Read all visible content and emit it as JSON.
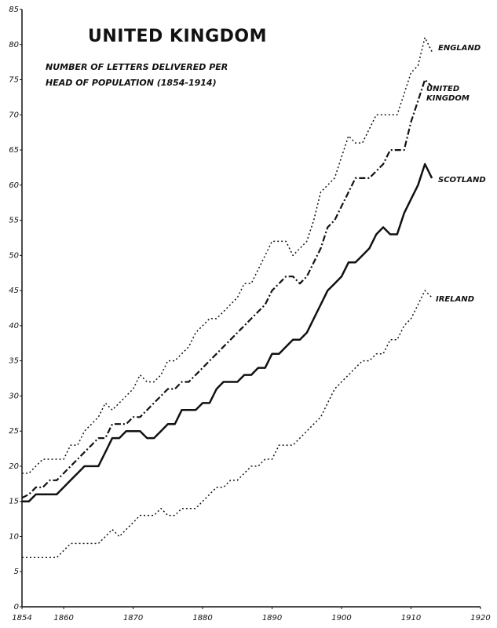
{
  "chart_data": {
    "type": "line",
    "title": "UNITED KINGDOM",
    "subtitle": "NUMBER OF LETTERS DELIVERED PER HEAD OF POPULATION (1854-1914)",
    "x": [
      1854,
      1855,
      1856,
      1857,
      1858,
      1859,
      1860,
      1861,
      1862,
      1863,
      1864,
      1865,
      1866,
      1867,
      1868,
      1869,
      1870,
      1871,
      1872,
      1873,
      1874,
      1875,
      1876,
      1877,
      1878,
      1879,
      1880,
      1881,
      1882,
      1883,
      1884,
      1885,
      1886,
      1887,
      1888,
      1889,
      1890,
      1891,
      1892,
      1893,
      1894,
      1895,
      1896,
      1897,
      1898,
      1899,
      1900,
      1901,
      1902,
      1903,
      1904,
      1905,
      1906,
      1907,
      1908,
      1909,
      1910,
      1911,
      1912,
      1913
    ],
    "series": [
      {
        "name": "ENGLAND",
        "color": "#111111",
        "style": "dotted",
        "values": [
          19,
          19,
          20,
          21,
          21,
          21,
          21,
          23,
          23,
          25,
          26,
          27,
          29,
          28,
          29,
          30,
          31,
          33,
          32,
          32,
          33,
          35,
          35,
          36,
          37,
          39,
          40,
          41,
          41,
          42,
          43,
          44,
          46,
          46,
          48,
          50,
          52,
          52,
          52,
          50,
          51,
          52,
          55,
          59,
          60,
          61,
          64,
          67,
          66,
          66,
          68,
          70,
          70,
          70,
          70,
          73,
          76,
          77,
          81,
          79
        ]
      },
      {
        "name": "UNITED KINGDOM",
        "color": "#111111",
        "style": "dashdot",
        "values": [
          15.5,
          16,
          17,
          17,
          18,
          18,
          19,
          20,
          21,
          22,
          23,
          24,
          24,
          26,
          26,
          26,
          27,
          27,
          28,
          29,
          30,
          31,
          31,
          32,
          32,
          33,
          34,
          35,
          36,
          37,
          38,
          39,
          40,
          41,
          42,
          43,
          45,
          46,
          47,
          47,
          46,
          47,
          49,
          51,
          54,
          55,
          57,
          59,
          61,
          61,
          61,
          62,
          63,
          65,
          65,
          65,
          69,
          72,
          75,
          74
        ]
      },
      {
        "name": "SCOTLAND",
        "color": "#111111",
        "style": "solid",
        "values": [
          15,
          15,
          16,
          16,
          16,
          16,
          17,
          18,
          19,
          20,
          20,
          20,
          22,
          24,
          24,
          25,
          25,
          25,
          24,
          24,
          25,
          26,
          26,
          28,
          28,
          28,
          29,
          29,
          31,
          32,
          32,
          32,
          33,
          33,
          34,
          34,
          36,
          36,
          37,
          38,
          38,
          39,
          41,
          43,
          45,
          46,
          47,
          49,
          49,
          50,
          51,
          53,
          54,
          53,
          53,
          56,
          58,
          60,
          63,
          61
        ]
      },
      {
        "name": "IRELAND",
        "color": "#111111",
        "style": "dotted",
        "values": [
          7,
          7,
          7,
          7,
          7,
          7,
          8,
          9,
          9,
          9,
          9,
          9,
          10,
          11,
          10,
          11,
          12,
          13,
          13,
          13,
          14,
          13,
          13,
          14,
          14,
          14,
          15,
          16,
          17,
          17,
          18,
          18,
          19,
          20,
          20,
          21,
          21,
          23,
          23,
          23,
          24,
          25,
          26,
          27,
          29,
          31,
          32,
          33,
          34,
          35,
          35,
          36,
          36,
          38,
          38,
          40,
          41,
          43,
          45,
          44
        ]
      }
    ],
    "xlim": [
      1854,
      1920
    ],
    "xticks": [
      1854,
      1860,
      1870,
      1880,
      1890,
      1900,
      1910,
      1920
    ],
    "ylim": [
      0,
      85
    ],
    "yticks": [
      0,
      5,
      10,
      15,
      20,
      25,
      30,
      35,
      40,
      45,
      50,
      55,
      60,
      65,
      70,
      75,
      80,
      85
    ],
    "grid": false
  }
}
